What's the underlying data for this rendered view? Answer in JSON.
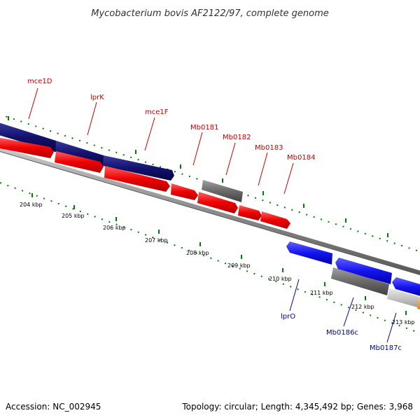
{
  "title": "Mycobacterium bovis AF2122/97, complete genome",
  "footer": {
    "accession": "Accession: NC_002945",
    "summary": "Topology: circular; Length: 4,345,492 bp; Genes: 3,968"
  },
  "colors": {
    "upper_gene_label": "#cc0000",
    "lower_gene_label": "#0000aa",
    "tick": "#008000",
    "backbone": "#808080"
  },
  "gene_labels_top": [
    "mce1D",
    "lprK",
    "mce1F",
    "Mb0181",
    "Mb0182",
    "Mb0183",
    "Mb0184"
  ],
  "gene_labels_bottom": [
    "lprO",
    "Mb0186c",
    "Mb0187c"
  ],
  "kbp_ticks": [
    "204 kbp",
    "205 kbp",
    "206 kbp",
    "207 kbp",
    "208 kbp",
    "209 kbp",
    "210 kbp",
    "211 kbp",
    "212 kbp",
    "213 kbp"
  ]
}
